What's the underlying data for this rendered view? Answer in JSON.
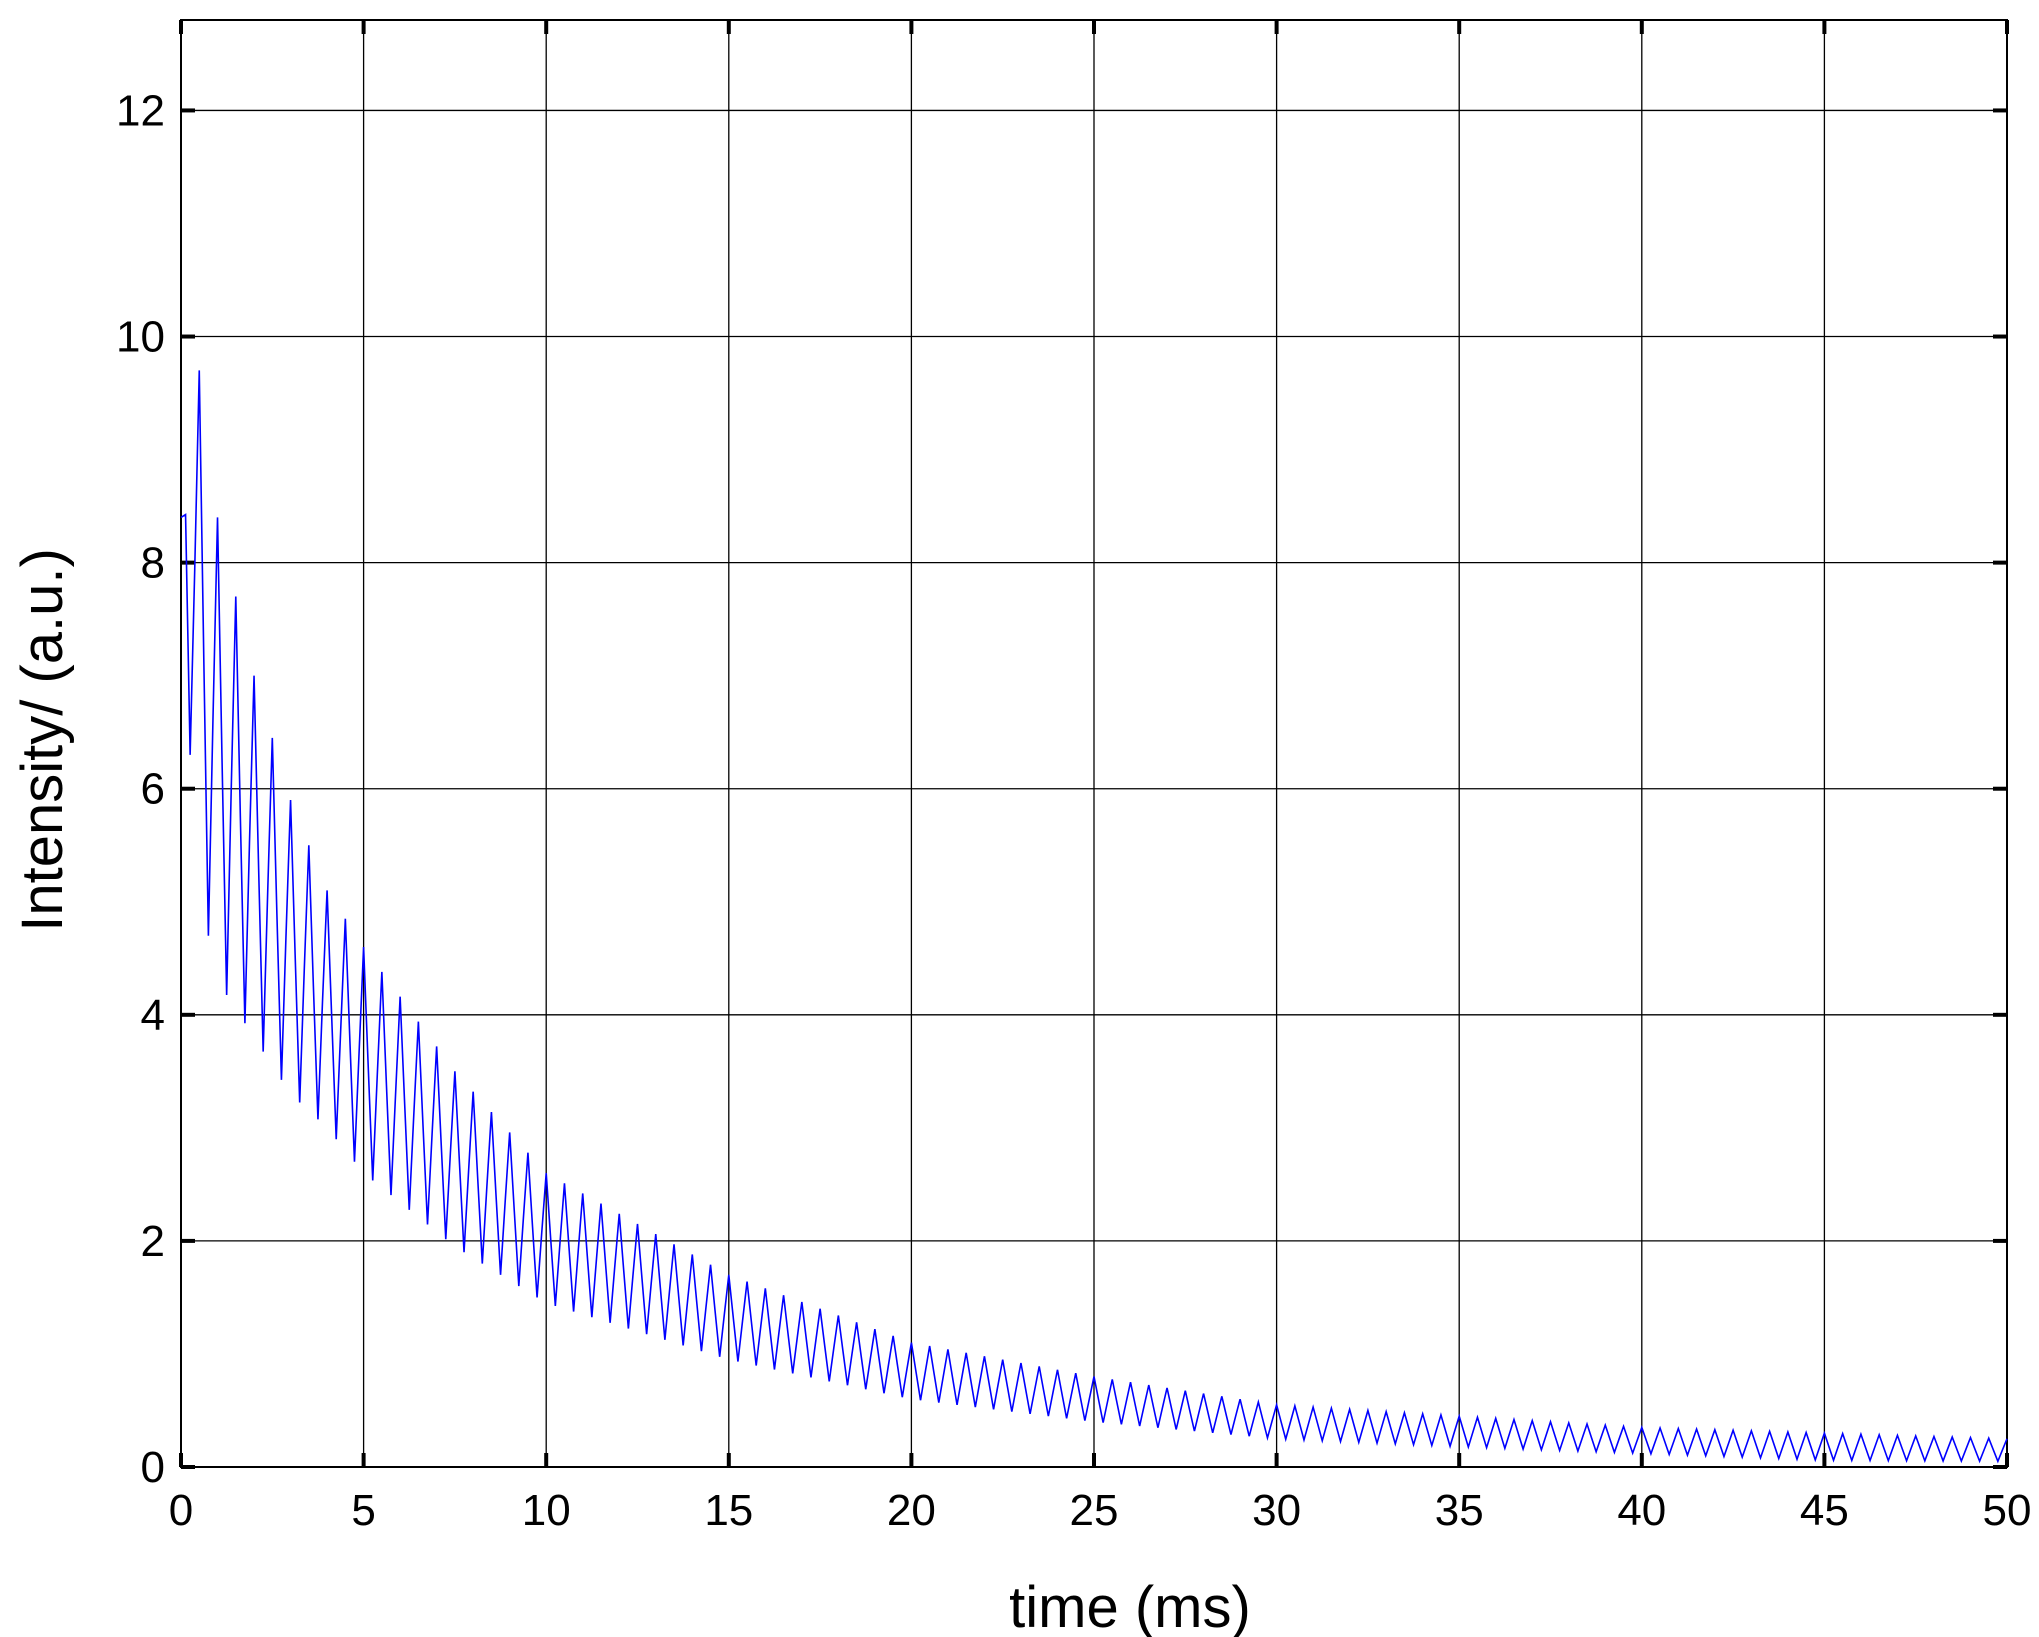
{
  "chart_data": {
    "type": "line",
    "title": "",
    "xlabel": "time (ms)",
    "ylabel": "Intensity/ (a.u.)",
    "xlim": [
      0,
      50
    ],
    "ylim": [
      0,
      12.8
    ],
    "xticks": [
      "0",
      "5",
      "10",
      "15",
      "20",
      "25",
      "30",
      "35",
      "40",
      "45",
      "50"
    ],
    "yticks": [
      "0",
      "2",
      "4",
      "6",
      "8",
      "10",
      "12"
    ],
    "grid": true,
    "legend": "none",
    "series": [
      {
        "color": "#0000ff",
        "description_points": {
          "x": [
            0,
            0.25,
            0.5,
            1,
            2,
            3,
            4,
            5,
            7.5,
            10,
            15,
            20,
            25,
            30,
            35,
            40,
            45,
            50
          ],
          "upper_envelope": [
            8.4,
            10.6,
            9.7,
            8.4,
            7.0,
            5.9,
            5.1,
            4.6,
            3.5,
            2.6,
            1.7,
            1.1,
            0.8,
            0.55,
            0.45,
            0.35,
            0.3,
            0.25
          ],
          "lower_envelope": [
            8.4,
            6.3,
            5.1,
            4.3,
            3.8,
            3.3,
            3.0,
            2.6,
            1.95,
            1.45,
            0.95,
            0.6,
            0.4,
            0.25,
            0.18,
            0.12,
            0.06,
            0.05
          ]
        },
        "oscillation_period_ms": 0.5
      }
    ]
  },
  "colors": {
    "line": "#0000ff",
    "grid": "#000000",
    "axes": "#000000",
    "background": "#ffffff"
  }
}
